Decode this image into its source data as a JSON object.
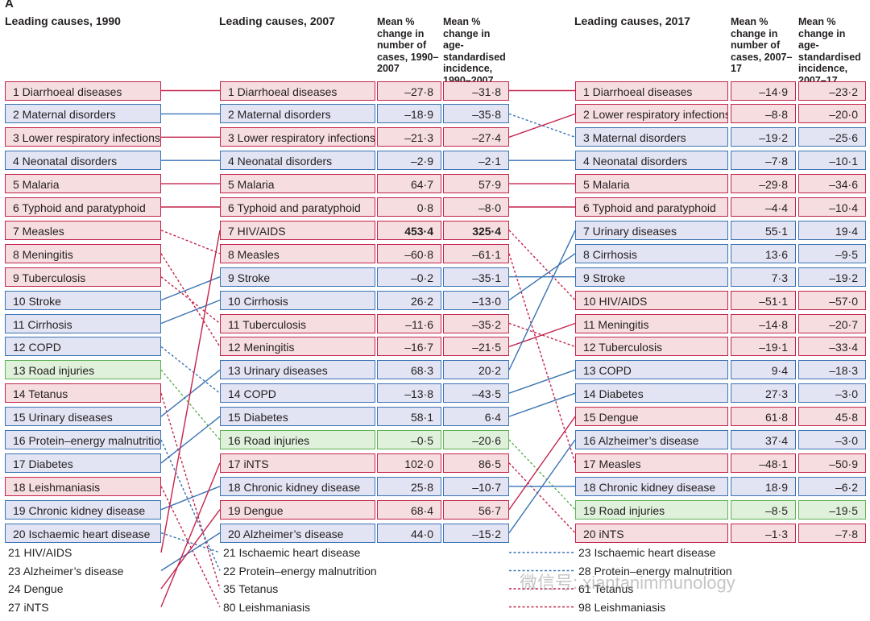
{
  "panel_label": "A",
  "headers": {
    "c1990": "Leading causes, 1990",
    "c2007": "Leading causes, 2007",
    "mean_cases_2007": "Mean % change in number of cases, 1990–2007",
    "mean_incidence_2007": "Mean % change in age-standardised incidence, 1990–2007",
    "c2017": "Leading causes, 2017",
    "mean_cases_2017": "Mean % change in number of cases, 2007–17",
    "mean_incidence_2017": "Mean % change in age-standardised incidence, 2007–17"
  },
  "colors": {
    "communicable": "#c2244c",
    "non_communicable": "#3a73b3",
    "injury": "#5fb157"
  },
  "chart_data": {
    "type": "table",
    "causes_1990": [
      {
        "label": "1 Diarrhoeal diseases",
        "group": "comm"
      },
      {
        "label": "2 Maternal disorders",
        "group": "ncd"
      },
      {
        "label": "3 Lower respiratory infections",
        "group": "comm"
      },
      {
        "label": "4 Neonatal disorders",
        "group": "ncd"
      },
      {
        "label": "5 Malaria",
        "group": "comm"
      },
      {
        "label": "6 Typhoid and paratyphoid",
        "group": "comm"
      },
      {
        "label": "7 Measles",
        "group": "comm"
      },
      {
        "label": "8 Meningitis",
        "group": "comm"
      },
      {
        "label": "9 Tuberculosis",
        "group": "comm"
      },
      {
        "label": "10 Stroke",
        "group": "ncd"
      },
      {
        "label": "11 Cirrhosis",
        "group": "ncd"
      },
      {
        "label": "12 COPD",
        "group": "ncd"
      },
      {
        "label": "13 Road injuries",
        "group": "inj"
      },
      {
        "label": "14 Tetanus",
        "group": "comm"
      },
      {
        "label": "15 Urinary diseases",
        "group": "ncd"
      },
      {
        "label": "16 Protein–energy malnutrition",
        "group": "ncd"
      },
      {
        "label": "17 Diabetes",
        "group": "ncd"
      },
      {
        "label": "18 Leishmaniasis",
        "group": "comm"
      },
      {
        "label": "19 Chronic kidney disease",
        "group": "ncd"
      },
      {
        "label": "20 Ischaemic heart disease",
        "group": "ncd"
      }
    ],
    "extras_1990": [
      "21 HIV/AIDS",
      "23 Alzheimer’s disease",
      "24 Dengue",
      "27 iNTS"
    ],
    "causes_2007": [
      {
        "label": "1 Diarrhoeal diseases",
        "group": "comm",
        "cases": "–27·8",
        "incidence": "–31·8"
      },
      {
        "label": "2 Maternal disorders",
        "group": "ncd",
        "cases": "–18·9",
        "incidence": "–35·8"
      },
      {
        "label": "3 Lower respiratory infections",
        "group": "comm",
        "cases": "–21·3",
        "incidence": "–27·4"
      },
      {
        "label": "4 Neonatal disorders",
        "group": "ncd",
        "cases": "–2·9",
        "incidence": "–2·1"
      },
      {
        "label": "5 Malaria",
        "group": "comm",
        "cases": "64·7",
        "incidence": "57·9"
      },
      {
        "label": "6 Typhoid and paratyphoid",
        "group": "comm",
        "cases": "0·8",
        "incidence": "–8·0"
      },
      {
        "label": "7 HIV/AIDS",
        "group": "comm",
        "cases": "453·4",
        "incidence": "325·4",
        "bold": true
      },
      {
        "label": "8 Measles",
        "group": "comm",
        "cases": "–60·8",
        "incidence": "–61·1"
      },
      {
        "label": "9 Stroke",
        "group": "ncd",
        "cases": "–0·2",
        "incidence": "–35·1"
      },
      {
        "label": "10 Cirrhosis",
        "group": "ncd",
        "cases": "26·2",
        "incidence": "–13·0"
      },
      {
        "label": "11 Tuberculosis",
        "group": "comm",
        "cases": "–11·6",
        "incidence": "–35·2"
      },
      {
        "label": "12 Meningitis",
        "group": "comm",
        "cases": "–16·7",
        "incidence": "–21·5"
      },
      {
        "label": "13 Urinary diseases",
        "group": "ncd",
        "cases": "68·3",
        "incidence": "20·2"
      },
      {
        "label": "14 COPD",
        "group": "ncd",
        "cases": "–13·8",
        "incidence": "–43·5"
      },
      {
        "label": "15 Diabetes",
        "group": "ncd",
        "cases": "58·1",
        "incidence": "6·4"
      },
      {
        "label": "16 Road injuries",
        "group": "inj",
        "cases": "–0·5",
        "incidence": "–20·6"
      },
      {
        "label": "17 iNTS",
        "group": "comm",
        "cases": "102·0",
        "incidence": "86·5"
      },
      {
        "label": "18 Chronic kidney disease",
        "group": "ncd",
        "cases": "25·8",
        "incidence": "–10·7"
      },
      {
        "label": "19 Dengue",
        "group": "comm",
        "cases": "68·4",
        "incidence": "56·7"
      },
      {
        "label": "20 Alzheimer’s disease",
        "group": "ncd",
        "cases": "44·0",
        "incidence": "–15·2"
      }
    ],
    "extras_2007": [
      "21 Ischaemic heart disease",
      "22 Protein–energy malnutrition",
      "35 Tetanus",
      "80 Leishmaniasis"
    ],
    "causes_2017": [
      {
        "label": "1 Diarrhoeal diseases",
        "group": "comm",
        "cases": "–14·9",
        "incidence": "–23·2"
      },
      {
        "label": "2 Lower respiratory infections",
        "group": "comm",
        "cases": "–8·8",
        "incidence": "–20·0"
      },
      {
        "label": "3 Maternal disorders",
        "group": "ncd",
        "cases": "–19·2",
        "incidence": "–25·6"
      },
      {
        "label": "4 Neonatal disorders",
        "group": "ncd",
        "cases": "–7·8",
        "incidence": "–10·1"
      },
      {
        "label": "5 Malaria",
        "group": "comm",
        "cases": "–29·8",
        "incidence": "–34·6"
      },
      {
        "label": "6 Typhoid and paratyphoid",
        "group": "comm",
        "cases": "–4·4",
        "incidence": "–10·4"
      },
      {
        "label": "7 Urinary diseases",
        "group": "ncd",
        "cases": "55·1",
        "incidence": "19·4"
      },
      {
        "label": "8 Cirrhosis",
        "group": "ncd",
        "cases": "13·6",
        "incidence": "–9·5"
      },
      {
        "label": "9 Stroke",
        "group": "ncd",
        "cases": "7·3",
        "incidence": "–19·2"
      },
      {
        "label": "10 HIV/AIDS",
        "group": "comm",
        "cases": "–51·1",
        "incidence": "–57·0"
      },
      {
        "label": "11 Meningitis",
        "group": "comm",
        "cases": "–14·8",
        "incidence": "–20·7"
      },
      {
        "label": "12 Tuberculosis",
        "group": "comm",
        "cases": "–19·1",
        "incidence": "–33·4"
      },
      {
        "label": "13 COPD",
        "group": "ncd",
        "cases": "9·4",
        "incidence": "–18·3"
      },
      {
        "label": "14 Diabetes",
        "group": "ncd",
        "cases": "27·3",
        "incidence": "–3·0"
      },
      {
        "label": "15 Dengue",
        "group": "comm",
        "cases": "61·8",
        "incidence": "45·8"
      },
      {
        "label": "16 Alzheimer’s disease",
        "group": "ncd",
        "cases": "37·4",
        "incidence": "–3·0"
      },
      {
        "label": "17 Measles",
        "group": "comm",
        "cases": "–48·1",
        "incidence": "–50·9"
      },
      {
        "label": "18 Chronic kidney disease",
        "group": "ncd",
        "cases": "18·9",
        "incidence": "–6·2"
      },
      {
        "label": "19 Road injuries",
        "group": "inj",
        "cases": "–8·5",
        "incidence": "–19·5"
      },
      {
        "label": "20 iNTS",
        "group": "comm",
        "cases": "–1·3",
        "incidence": "–7·8"
      }
    ],
    "extras_2017": [
      {
        "label": "23 Ischaemic heart disease",
        "group": "ncd"
      },
      {
        "label": "28 Protein–energy malnutrition",
        "group": "ncd"
      },
      {
        "label": "61 Tetanus",
        "group": "comm"
      },
      {
        "label": "98 Leishmaniasis",
        "group": "comm"
      }
    ],
    "links_1990_2007": [
      {
        "from": 1,
        "to": 1,
        "group": "comm"
      },
      {
        "from": 2,
        "to": 2,
        "group": "ncd"
      },
      {
        "from": 3,
        "to": 3,
        "group": "comm"
      },
      {
        "from": 4,
        "to": 4,
        "group": "ncd"
      },
      {
        "from": 5,
        "to": 5,
        "group": "comm"
      },
      {
        "from": 6,
        "to": 6,
        "group": "comm"
      },
      {
        "from": 7,
        "to": 8,
        "group": "comm"
      },
      {
        "from": 8,
        "to": 12,
        "group": "comm"
      },
      {
        "from": 9,
        "to": 11,
        "group": "comm"
      },
      {
        "from": 10,
        "to": 9,
        "group": "ncd"
      },
      {
        "from": 11,
        "to": 10,
        "group": "ncd"
      },
      {
        "from": 12,
        "to": 14,
        "group": "ncd"
      },
      {
        "from": 13,
        "to": 16,
        "group": "inj"
      },
      {
        "from": 14,
        "to": "x35",
        "group": "comm"
      },
      {
        "from": 15,
        "to": 13,
        "group": "ncd"
      },
      {
        "from": 16,
        "to": "x22",
        "group": "ncd"
      },
      {
        "from": 17,
        "to": 15,
        "group": "ncd"
      },
      {
        "from": 18,
        "to": "x80",
        "group": "comm"
      },
      {
        "from": 19,
        "to": 18,
        "group": "ncd"
      },
      {
        "from": 20,
        "to": "x21",
        "group": "ncd"
      },
      {
        "from": "x21",
        "to": 7,
        "group": "comm"
      },
      {
        "from": "x23",
        "to": 20,
        "group": "ncd"
      },
      {
        "from": "x24",
        "to": 19,
        "group": "comm"
      },
      {
        "from": "x27",
        "to": 17,
        "group": "comm"
      }
    ],
    "links_2007_2017": [
      {
        "from": 1,
        "to": 1,
        "group": "comm"
      },
      {
        "from": 2,
        "to": 3,
        "group": "ncd"
      },
      {
        "from": 3,
        "to": 2,
        "group": "comm"
      },
      {
        "from": 4,
        "to": 4,
        "group": "ncd"
      },
      {
        "from": 5,
        "to": 5,
        "group": "comm"
      },
      {
        "from": 6,
        "to": 6,
        "group": "comm"
      },
      {
        "from": 7,
        "to": 10,
        "group": "comm"
      },
      {
        "from": 8,
        "to": 17,
        "group": "comm"
      },
      {
        "from": 9,
        "to": 9,
        "group": "ncd"
      },
      {
        "from": 10,
        "to": 8,
        "group": "ncd"
      },
      {
        "from": 11,
        "to": 12,
        "group": "comm"
      },
      {
        "from": 12,
        "to": 11,
        "group": "comm"
      },
      {
        "from": 13,
        "to": 7,
        "group": "ncd"
      },
      {
        "from": 14,
        "to": 13,
        "group": "ncd"
      },
      {
        "from": 15,
        "to": 14,
        "group": "ncd"
      },
      {
        "from": 16,
        "to": 19,
        "group": "inj"
      },
      {
        "from": 17,
        "to": 20,
        "group": "comm"
      },
      {
        "from": 18,
        "to": 18,
        "group": "ncd"
      },
      {
        "from": 19,
        "to": 15,
        "group": "comm"
      },
      {
        "from": 20,
        "to": 16,
        "group": "ncd"
      },
      {
        "from": "e1",
        "to": "e1",
        "group": "ncd"
      },
      {
        "from": "e2",
        "to": "e2",
        "group": "ncd"
      },
      {
        "from": "e3",
        "to": "e3",
        "group": "comm"
      },
      {
        "from": "e4",
        "to": "e4",
        "group": "comm"
      }
    ]
  },
  "watermark": "微信号: xiantanimmunology"
}
